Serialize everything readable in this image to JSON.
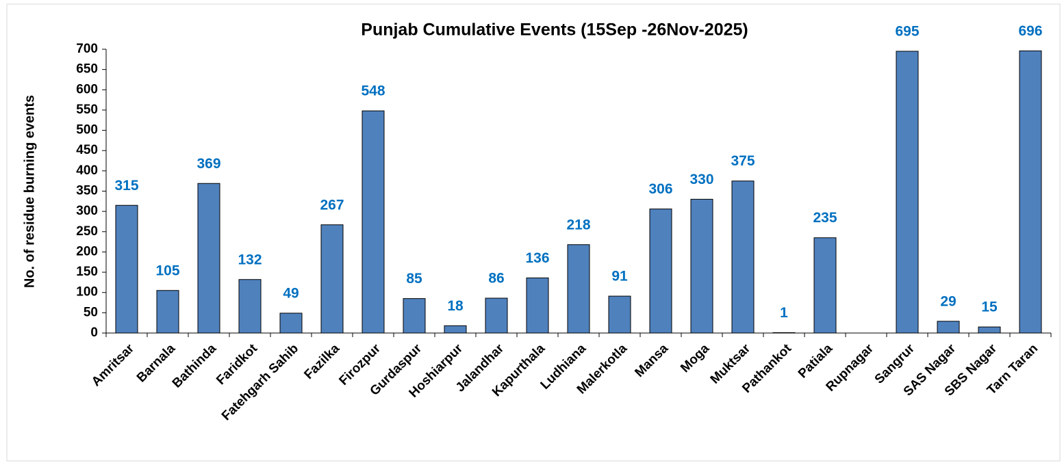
{
  "chart_data": {
    "type": "bar",
    "title": "Punjab Cumulative Events (15Sep -26Nov-2025)",
    "y_label": "No. of residue burning events",
    "categories": [
      "Amritsar",
      "Barnala",
      "Bathinda",
      "Faridkot",
      "Fatehgarh Sahib",
      "Fazilka",
      "Firozpur",
      "Gurdaspur",
      "Hoshiarpur",
      "Jalandhar",
      "Kapurthala",
      "Ludhiana",
      "Malerkotla",
      "Mansa",
      "Moga",
      "Muktsar",
      "Pathankot",
      "Patiala",
      "Rupnagar",
      "Sangrur",
      "SAS Nagar",
      "SBS Nagar",
      "Tarn Taran"
    ],
    "values": [
      315,
      105,
      369,
      132,
      49,
      267,
      548,
      85,
      18,
      86,
      136,
      218,
      91,
      306,
      330,
      375,
      1,
      235,
      null,
      695,
      29,
      15,
      696
    ],
    "color": "#4f81bd",
    "label_color": "#0070c0",
    "ylim": [
      0,
      700
    ],
    "yticks": [
      0,
      50,
      100,
      150,
      200,
      250,
      300,
      350,
      400,
      450,
      500,
      550,
      600,
      650,
      700
    ],
    "grid": false
  }
}
